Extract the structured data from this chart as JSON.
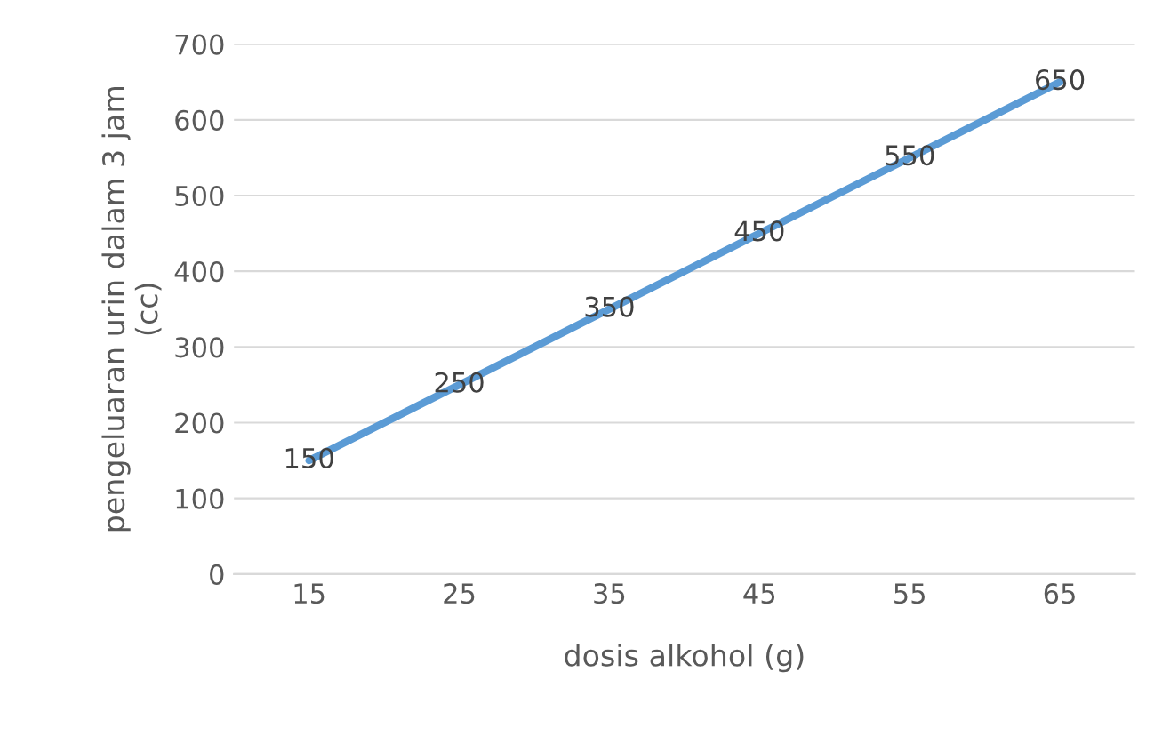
{
  "chart_data": {
    "type": "line",
    "xlabel": "dosis alkohol (g)",
    "ylabel": "pengeluaran urin dalam 3 jam\n(cc)",
    "categories": [
      "15",
      "25",
      "35",
      "45",
      "55",
      "65"
    ],
    "series": [
      {
        "color": "#5b9bd5",
        "values": [
          150,
          250,
          350,
          450,
          550,
          650
        ]
      }
    ],
    "ylim": [
      0,
      700
    ],
    "yticks": [
      0,
      100,
      200,
      300,
      400,
      500,
      600,
      700
    ],
    "grid": "y",
    "data_labels": true,
    "marker": "none"
  }
}
